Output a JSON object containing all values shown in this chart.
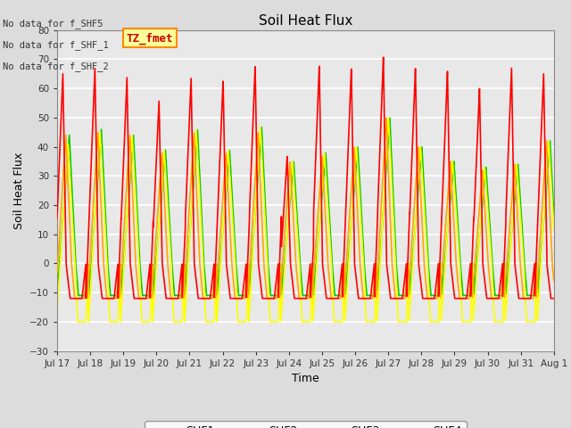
{
  "title": "Soil Heat Flux",
  "xlabel": "Time",
  "ylabel": "Soil Heat Flux",
  "ylim": [
    -30,
    80
  ],
  "yticks": [
    -30,
    -20,
    -10,
    0,
    10,
    20,
    30,
    40,
    50,
    60,
    70,
    80
  ],
  "xtick_labels": [
    "Jul 17",
    "Jul 18",
    "Jul 19",
    "Jul 20",
    "Jul 21",
    "Jul 22",
    "Jul 23",
    "Jul 24",
    "Jul 25",
    "Jul 26",
    "Jul 27",
    "Jul 28",
    "Jul 29",
    "Jul 30",
    "Jul 31",
    "Aug 1"
  ],
  "colors": {
    "SHF1": "#FF0000",
    "SHF2": "#FFA500",
    "SHF3": "#FFFF00",
    "SHF4": "#00CC00"
  },
  "no_data_texts": [
    "No data for f_SHF5",
    "No data for f_SHF_1",
    "No data for f_SHF_2"
  ],
  "watermark_text": "TZ_fmet",
  "watermark_bg": "#FFFF99",
  "watermark_border": "#FF8800",
  "background_color": "#DCDCDC",
  "plot_bg_color": "#E8E8E8",
  "grid_color": "#FFFFFF",
  "n_days": 15.5,
  "peak_amplitudes_shf1": [
    65,
    67,
    64,
    56,
    64,
    63,
    68,
    37,
    68,
    67,
    71,
    67,
    66,
    60,
    67,
    65
  ],
  "peak_amplitudes_shf2": [
    44,
    45,
    44,
    38,
    45,
    38,
    45,
    35,
    37,
    40,
    50,
    40,
    35,
    32,
    34,
    42
  ],
  "peak_amplitudes_shf3": [
    41,
    45,
    44,
    39,
    46,
    39,
    47,
    35,
    38,
    40,
    50,
    40,
    35,
    33,
    34,
    42
  ],
  "peak_amplitudes_shf4": [
    44,
    46,
    44,
    39,
    46,
    39,
    47,
    35,
    38,
    40,
    50,
    40,
    35,
    33,
    34,
    42
  ],
  "trough_shf1": -12,
  "trough_shf2": -12,
  "trough_shf3": -20,
  "trough_shf4": -11,
  "line_width": 1.2,
  "figsize": [
    6.4,
    4.8
  ],
  "dpi": 100
}
